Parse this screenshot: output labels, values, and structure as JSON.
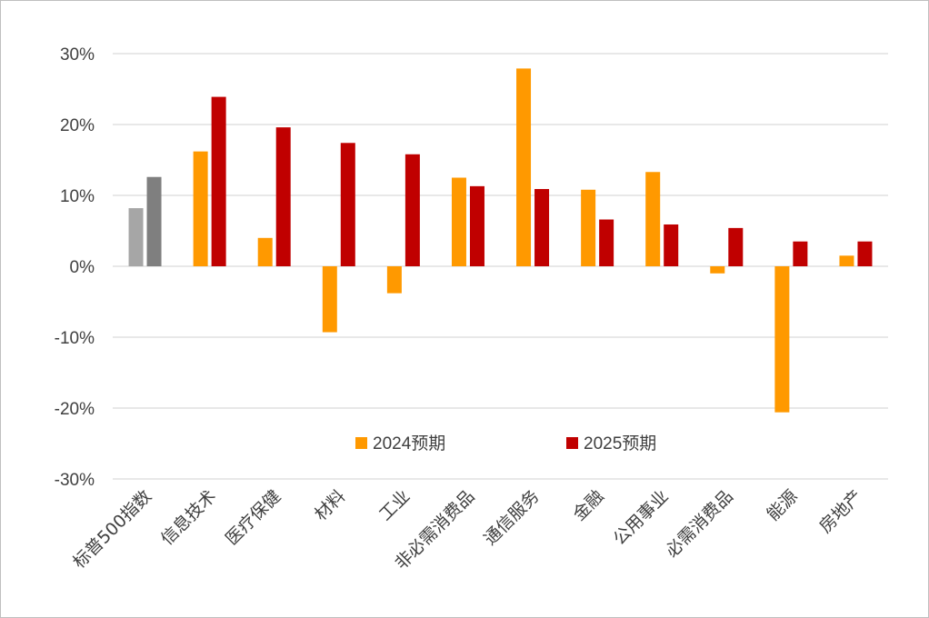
{
  "chart_data": {
    "type": "bar",
    "categories": [
      "标普500指数",
      "信息技术",
      "医疗保健",
      "材料",
      "工业",
      "非必需消费品",
      "通信服务",
      "金融",
      "公用事业",
      "必需消费品",
      "能源",
      "房地产"
    ],
    "series": [
      {
        "name": "2024预期",
        "color": "#ff9900",
        "values": [
          8.2,
          16.2,
          4.0,
          -9.3,
          -3.8,
          12.5,
          27.9,
          10.8,
          13.3,
          -1.0,
          -20.6,
          1.5
        ]
      },
      {
        "name": "2025预期",
        "color": "#c00000",
        "values": [
          12.6,
          23.9,
          19.6,
          17.4,
          15.8,
          11.3,
          10.9,
          6.6,
          5.9,
          5.4,
          3.5,
          3.5
        ]
      }
    ],
    "highlight_colors": {
      "first_category_series1": "#a6a6a6",
      "first_category_series2": "#7f7f7f"
    },
    "ylim": [
      -30,
      30
    ],
    "yticks": [
      30,
      20,
      10,
      0,
      -10,
      -20,
      -30
    ],
    "ytick_labels": [
      "30%",
      "20%",
      "10%",
      "0%",
      "-10%",
      "-20%",
      "-30%"
    ],
    "grid": true,
    "legend_position": "inside-lower-center",
    "gridline_color": "#d9d9d9",
    "title": "",
    "xlabel": "",
    "ylabel": ""
  }
}
